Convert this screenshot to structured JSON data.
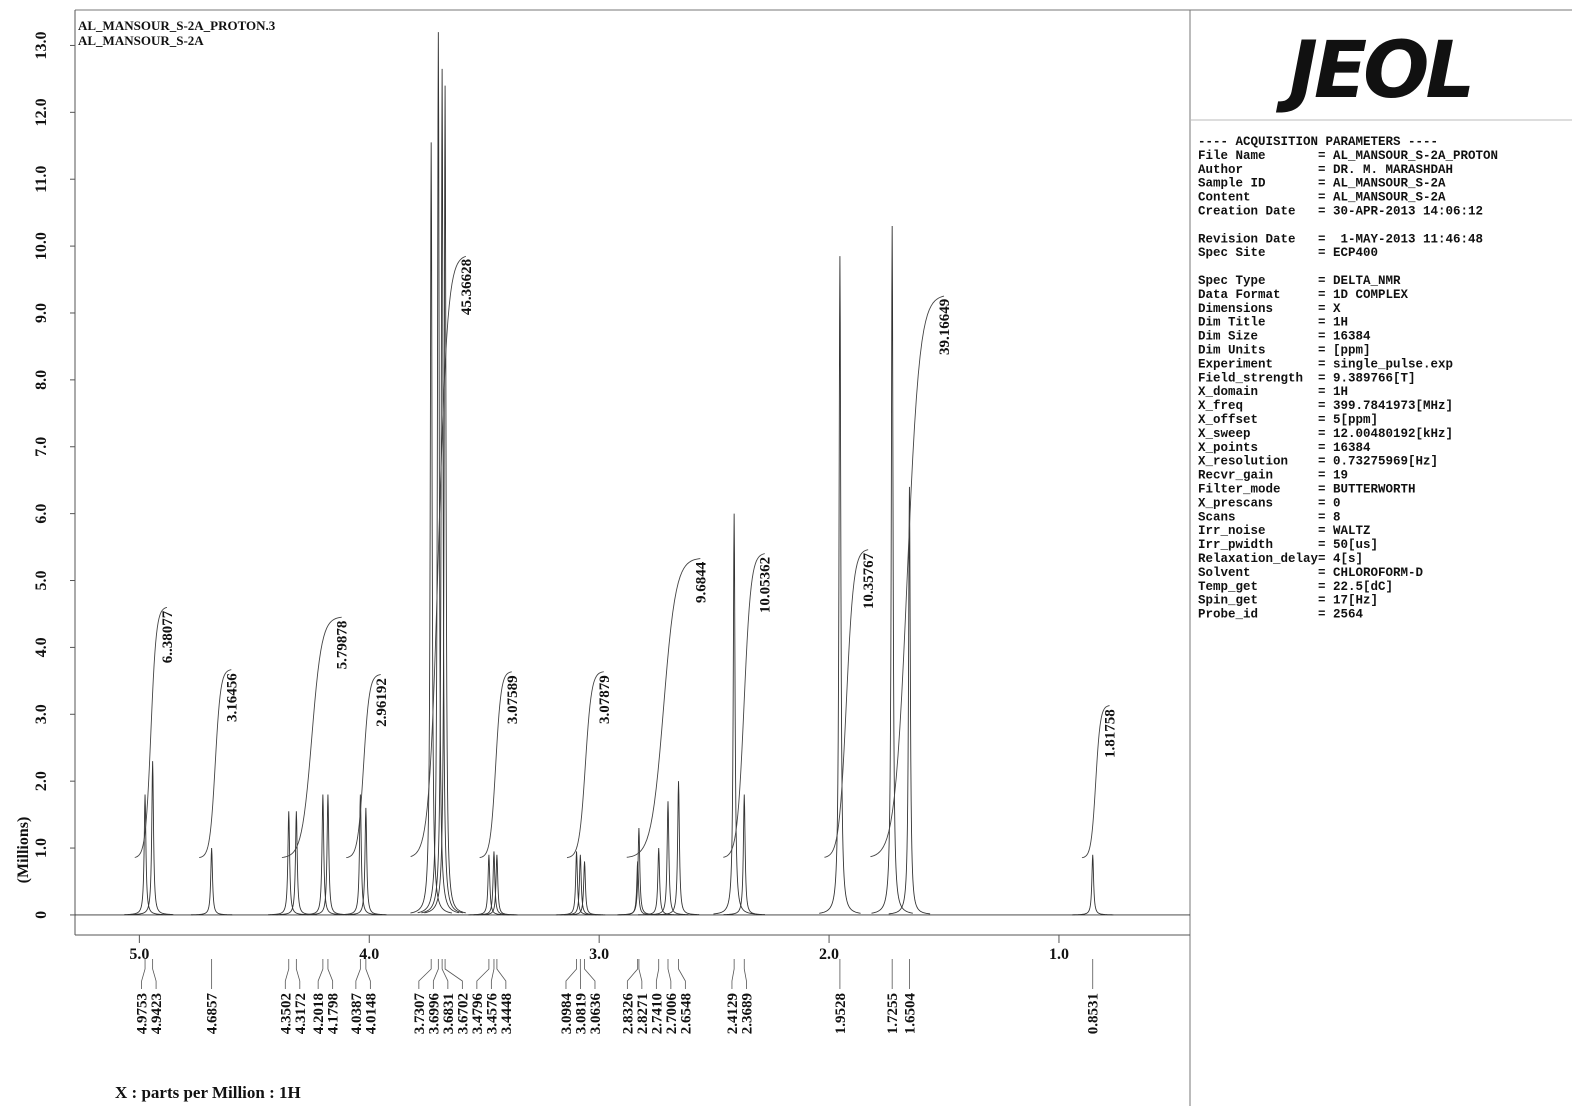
{
  "chart_data": {
    "type": "nmr",
    "title": "AL_MANSOUR_S-2A_PROTON.3",
    "subtitle": "AL_MANSOUR_S-2A",
    "ylabel": "(Millions)",
    "xlabel": "X : parts per Million : 1H",
    "xlim": [
      5.28,
      0.43
    ],
    "xticks": [
      {
        "value": 5,
        "label": "5.0"
      },
      {
        "value": 4,
        "label": "4.0"
      },
      {
        "value": 3,
        "label": "3.0"
      },
      {
        "value": 2,
        "label": "2.0"
      },
      {
        "value": 1,
        "label": "1.0"
      }
    ],
    "ylim": [
      -0.3,
      13.53
    ],
    "yticks": [
      0,
      {
        "value": 1,
        "label": "1.0"
      },
      {
        "value": 2,
        "label": "2.0"
      },
      {
        "value": 3,
        "label": "3.0"
      },
      {
        "value": 4,
        "label": "4.0"
      },
      {
        "value": 5,
        "label": "5.0"
      },
      {
        "value": 6,
        "label": "6.0"
      },
      {
        "value": 7,
        "label": "7.0"
      },
      {
        "value": 8,
        "label": "8.0"
      },
      {
        "value": 9,
        "label": "9.0"
      },
      {
        "value": 10,
        "label": "10.0"
      },
      {
        "value": 11,
        "label": "11.0"
      },
      {
        "value": 12,
        "label": "12.0"
      },
      {
        "value": 13,
        "label": "13.0"
      }
    ],
    "color": "#333333",
    "peaks": [
      {
        "ppm": 4.9753,
        "height": 1.8
      },
      {
        "ppm": 4.9423,
        "height": 2.3
      },
      {
        "ppm": 4.6857,
        "height": 1.0
      },
      {
        "ppm": 4.3502,
        "height": 1.55
      },
      {
        "ppm": 4.3172,
        "height": 1.55
      },
      {
        "ppm": 4.2018,
        "height": 1.8
      },
      {
        "ppm": 4.1798,
        "height": 1.8
      },
      {
        "ppm": 4.0387,
        "height": 1.8
      },
      {
        "ppm": 4.0148,
        "height": 1.6
      },
      {
        "ppm": 3.7307,
        "height": 11.55
      },
      {
        "ppm": 3.6996,
        "height": 13.2
      },
      {
        "ppm": 3.6831,
        "height": 12.65
      },
      {
        "ppm": 3.6702,
        "height": 12.4
      },
      {
        "ppm": 3.4796,
        "height": 0.9
      },
      {
        "ppm": 3.4576,
        "height": 0.95
      },
      {
        "ppm": 3.4448,
        "height": 0.9
      },
      {
        "ppm": 3.0984,
        "height": 0.95
      },
      {
        "ppm": 3.0819,
        "height": 0.9
      },
      {
        "ppm": 3.0636,
        "height": 0.8
      },
      {
        "ppm": 2.8326,
        "height": 0.8
      },
      {
        "ppm": 2.8271,
        "height": 1.3
      },
      {
        "ppm": {
          "value": 2.741,
          "label": "2.7410"
        },
        "height": 1.0
      },
      {
        "ppm": 2.7006,
        "height": 1.7
      },
      {
        "ppm": 2.6548,
        "height": 2.0
      },
      {
        "ppm": 2.4129,
        "height": 6.0
      },
      {
        "ppm": 2.3689,
        "height": 1.8
      },
      {
        "ppm": 1.9528,
        "height": 9.85
      },
      {
        "ppm": 1.7255,
        "height": 10.3
      },
      {
        "ppm": 1.6504,
        "height": 6.4
      },
      {
        "ppm": 0.8531,
        "height": 0.9
      }
    ],
    "integrals": [
      {
        "value": 6.38077,
        "label": "6..38077",
        "range": [
          5.02,
          4.88
        ]
      },
      {
        "value": 3.16456,
        "range": [
          4.74,
          4.6
        ]
      },
      {
        "value": 5.79878,
        "range": [
          4.38,
          4.12
        ]
      },
      {
        "value": 2.96192,
        "range": [
          4.1,
          3.95
        ]
      },
      {
        "value": 45.36628,
        "range": [
          3.82,
          3.58
        ]
      },
      {
        "value": 3.07589,
        "range": [
          3.52,
          3.38
        ]
      },
      {
        "value": 3.07879,
        "range": [
          3.14,
          2.98
        ]
      },
      {
        "value": 9.6844,
        "range": [
          2.88,
          2.56
        ]
      },
      {
        "value": 10.05362,
        "range": [
          2.46,
          2.28
        ]
      },
      {
        "value": 10.35767,
        "range": [
          2.02,
          1.83
        ]
      },
      {
        "value": 39.16649,
        "range": [
          1.82,
          1.5
        ]
      },
      {
        "value": 1.81758,
        "range": [
          0.9,
          0.78
        ]
      }
    ]
  },
  "logo": "JEOL",
  "params": {
    "heading": "---- ACQUISITION PARAMETERS ----",
    "groups": [
      [
        [
          "File Name",
          "= AL_MANSOUR_S-2A_PROTON"
        ],
        [
          "Author",
          "= DR. M. MARASHDAH"
        ],
        [
          "Sample ID",
          "= AL_MANSOUR_S-2A"
        ],
        [
          "Content",
          "= AL_MANSOUR_S-2A"
        ],
        [
          "Creation Date",
          "= 30-APR-2013 14:06:12"
        ]
      ],
      [
        [
          "Revision Date",
          "=  1-MAY-2013 11:46:48"
        ],
        [
          "Spec Site",
          "= ECP400"
        ]
      ],
      [
        [
          "Spec Type",
          "= DELTA_NMR"
        ],
        [
          "Data Format",
          "= 1D COMPLEX"
        ],
        [
          "Dimensions",
          "= X"
        ],
        [
          "Dim Title",
          "= 1H"
        ],
        [
          "Dim Size",
          "= 16384"
        ],
        [
          "Dim Units",
          "= [ppm]"
        ],
        [
          "Experiment",
          "= single_pulse.exp"
        ],
        [
          "Field_strength",
          "= 9.389766[T]"
        ],
        [
          "X_domain",
          "= 1H"
        ],
        [
          "X_freq",
          "= 399.7841973[MHz]"
        ],
        [
          "X_offset",
          "= 5[ppm]"
        ],
        [
          "X_sweep",
          "= 12.00480192[kHz]"
        ],
        [
          "X_points",
          "= 16384"
        ],
        [
          "X_resolution",
          "= 0.73275969[Hz]"
        ],
        [
          "Recvr_gain",
          "= 19"
        ],
        [
          "Filter_mode",
          "= BUTTERWORTH"
        ],
        [
          "X_prescans",
          "= 0"
        ],
        [
          "Scans",
          "= 8"
        ],
        [
          "Irr_noise",
          "= WALTZ"
        ],
        [
          "Irr_pwidth",
          "= 50[us]"
        ],
        [
          "Relaxation_delay",
          "= 4[s]"
        ],
        [
          "Solvent",
          "= CHLOROFORM-D"
        ],
        [
          "Temp_get",
          "= 22.5[dC]"
        ],
        [
          "Spin_get",
          "= 17[Hz]"
        ],
        [
          "Probe_id",
          "= 2564"
        ]
      ]
    ]
  }
}
